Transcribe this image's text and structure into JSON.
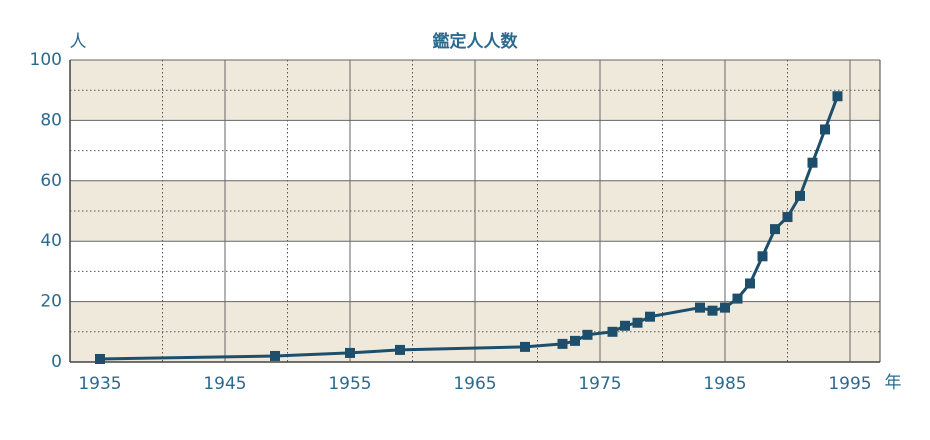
{
  "chart_data": {
    "type": "line",
    "title": "鑑定人人数",
    "y_unit": "人",
    "x_unit": "年",
    "x": [
      1935,
      1949,
      1955,
      1959,
      1969,
      1972,
      1973,
      1974,
      1976,
      1977,
      1978,
      1979,
      1983,
      1984,
      1985,
      1986,
      1987,
      1988,
      1989,
      1990,
      1991,
      1992,
      1993,
      1994
    ],
    "series": [
      {
        "name": "鑑定人人数",
        "color": "#1d4f6c",
        "values": [
          1,
          2,
          3,
          4,
          5,
          6,
          7,
          9,
          10,
          12,
          13,
          15,
          18,
          17,
          18,
          21,
          26,
          35,
          44,
          48,
          55,
          66,
          77,
          88
        ]
      }
    ],
    "xlim": [
      1932.6,
      1997.4
    ],
    "ylim": [
      0,
      100
    ],
    "xticks": [
      1935,
      1945,
      1955,
      1965,
      1975,
      1985,
      1995
    ],
    "yticks": [
      0,
      20,
      40,
      60,
      80,
      100
    ],
    "grid": true,
    "band_color": "#efe9dc"
  }
}
